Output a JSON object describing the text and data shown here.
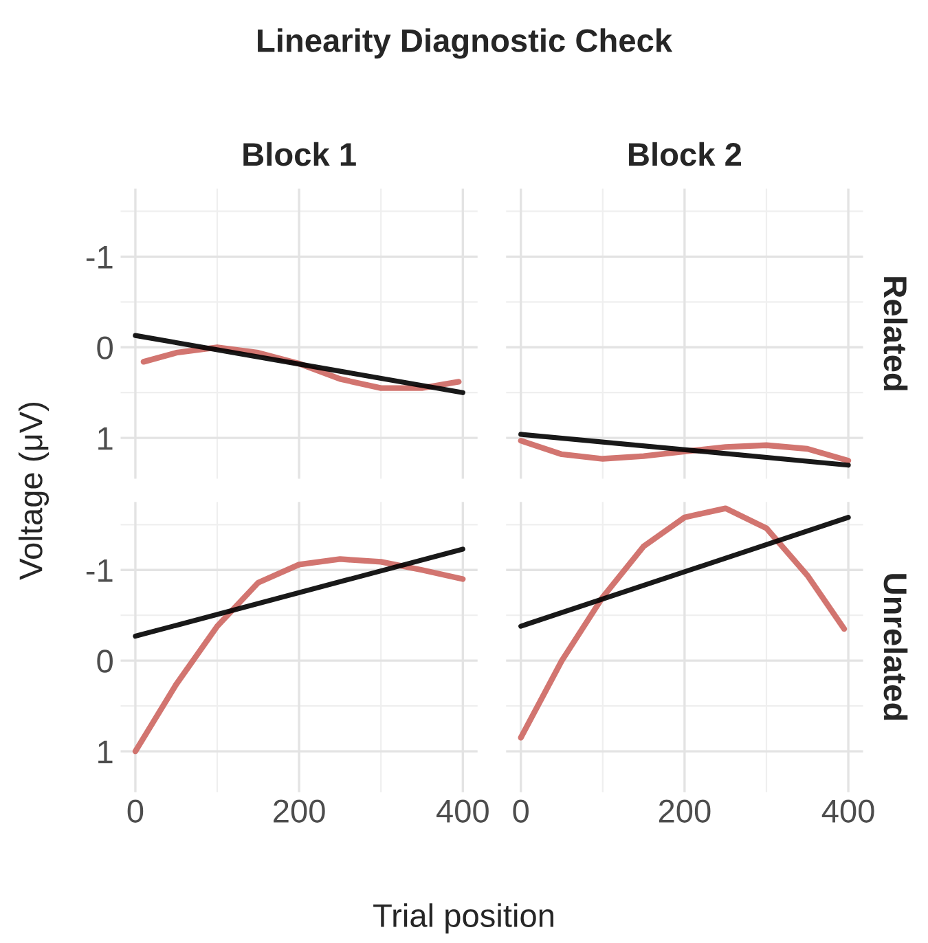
{
  "chart_data": [
    {
      "type": "line",
      "title": "Block 1",
      "ylabel": "Voltage (μV)",
      "annotations": [
        "Linearity Diagnostic Check"
      ],
      "xlim": [
        -18,
        418
      ],
      "ylim": [
        1.45,
        -1.75
      ],
      "xticks": [
        0,
        200,
        400
      ],
      "yticks": [
        -1,
        0,
        1
      ],
      "grid": true,
      "tick_labels": "y",
      "line_style": "solid",
      "series": [
        {
          "color": "#cd6660",
          "x": [
            10,
            50,
            100,
            150,
            200,
            250,
            300,
            350,
            395
          ],
          "values": [
            0.16,
            0.06,
            0.0,
            0.06,
            0.18,
            0.35,
            0.45,
            0.45,
            0.38
          ]
        },
        {
          "color": "#000000",
          "x": [
            0,
            400
          ],
          "values": [
            -0.13,
            0.5
          ]
        }
      ]
    },
    {
      "type": "line",
      "title": "Block 2",
      "y2label": "Related",
      "xlim": [
        -18,
        418
      ],
      "ylim": [
        1.45,
        -1.75
      ],
      "xticks": [
        0,
        200,
        400
      ],
      "yticks": [
        -1,
        0,
        1
      ],
      "grid": true,
      "tick_labels": false,
      "line_style": "solid",
      "series": [
        {
          "color": "#cd6660",
          "x": [
            0,
            50,
            100,
            150,
            200,
            250,
            300,
            350,
            400
          ],
          "values": [
            1.03,
            1.18,
            1.23,
            1.2,
            1.15,
            1.1,
            1.08,
            1.12,
            1.25
          ]
        },
        {
          "color": "#000000",
          "x": [
            0,
            400
          ],
          "values": [
            0.96,
            1.3
          ]
        }
      ]
    },
    {
      "type": "line",
      "xlabel": "Trial position",
      "xlim": [
        -18,
        418
      ],
      "ylim": [
        1.45,
        -1.75
      ],
      "xticks": [
        0,
        200,
        400
      ],
      "yticks": [
        -1,
        0,
        1
      ],
      "grid": true,
      "line_style": "solid",
      "series": [
        {
          "color": "#cd6660",
          "x": [
            0,
            50,
            100,
            150,
            200,
            250,
            300,
            350,
            400
          ],
          "values": [
            1.0,
            0.26,
            -0.38,
            -0.86,
            -1.06,
            -1.12,
            -1.09,
            -1.0,
            -0.9
          ]
        },
        {
          "color": "#000000",
          "x": [
            0,
            400
          ],
          "values": [
            -0.27,
            -1.23
          ]
        }
      ]
    },
    {
      "type": "line",
      "y2label": "Unrelated",
      "xlim": [
        -18,
        418
      ],
      "ylim": [
        1.45,
        -1.75
      ],
      "xticks": [
        0,
        200,
        400
      ],
      "yticks": [
        -1,
        0,
        1
      ],
      "grid": true,
      "tick_labels": "x",
      "line_style": "solid",
      "series": [
        {
          "color": "#cd6660",
          "x": [
            0,
            50,
            100,
            150,
            200,
            250,
            300,
            350,
            395
          ],
          "values": [
            0.85,
            0.0,
            -0.7,
            -1.26,
            -1.58,
            -1.68,
            -1.46,
            -0.94,
            -0.35
          ]
        },
        {
          "color": "#000000",
          "x": [
            0,
            400
          ],
          "values": [
            -0.38,
            -1.58
          ]
        }
      ]
    }
  ]
}
